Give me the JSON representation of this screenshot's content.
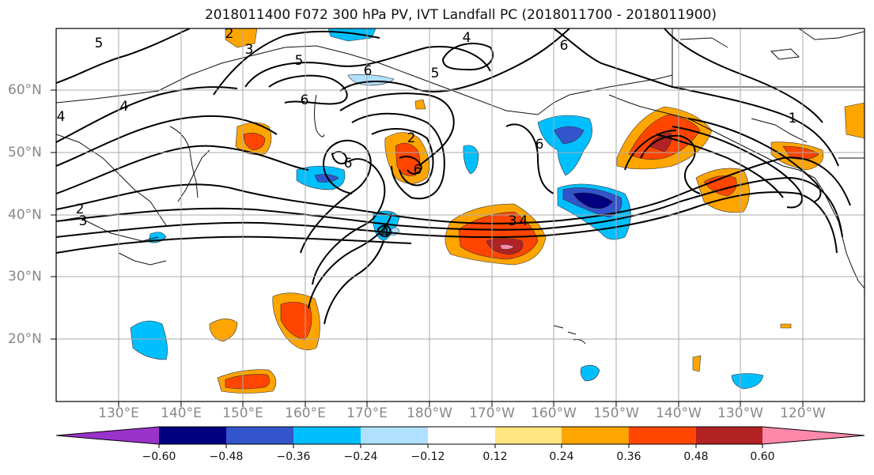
{
  "title": "2018011400 F072 300 hPa PV, IVT Landfall PC (2018011700 - 2018011900)",
  "axes": {
    "lat_labels": [
      "60°N",
      "50°N",
      "40°N",
      "30°N",
      "20°N"
    ],
    "lon_labels": [
      "130°E",
      "140°E",
      "150°E",
      "160°E",
      "170°E",
      "180°W",
      "170°W",
      "160°W",
      "150°W",
      "140°W",
      "130°W",
      "120°W"
    ]
  },
  "colorbar": {
    "ticks": [
      "−0.60",
      "−0.48",
      "−0.36",
      "−0.24",
      "−0.12",
      "0.12",
      "0.24",
      "0.36",
      "0.48",
      "0.60"
    ],
    "colors": [
      "#9933cc",
      "#000080",
      "#3355cc",
      "#00bfff",
      "#b0e0ff",
      "#ffffff",
      "#ffe680",
      "#ffa500",
      "#ff4500",
      "#b22222",
      "#ff88aa"
    ]
  },
  "contour_labels": [
    "5",
    "2",
    "3",
    "4",
    "6",
    "5",
    "6",
    "6",
    "5",
    "6",
    "4",
    "2",
    "3",
    "2",
    "3",
    "4",
    "6",
    "1",
    "6",
    "4",
    "4"
  ]
}
